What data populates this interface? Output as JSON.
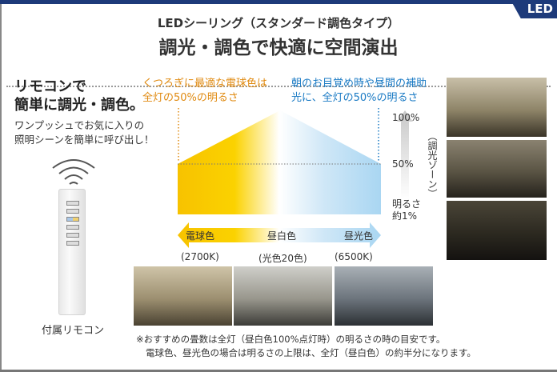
{
  "badge": "LED",
  "header": {
    "title": "LEDシーリング（スタンダード調色タイプ）",
    "subtitle": "調光・調色で快適に空間演出"
  },
  "left": {
    "lead_line1": "リモコンで",
    "lead_line2": "簡単に調光・調色。",
    "desc_line1": "ワンプッシュでお気に入りの",
    "desc_line2": "照明シーンを簡単に呼び出し！",
    "remote_label": "付属リモコン"
  },
  "callouts": {
    "warm_line1": "くつろぎに最適な電球色は",
    "warm_line2": "全灯の50%の明るさ",
    "cool_line1": "朝のお目覚め時や昼間の補助",
    "cool_line2": "光に、全灯の50%の明るさ"
  },
  "diagram": {
    "brightness_max": "100%",
    "brightness_mid": "50%",
    "brightness_min_line1": "明るさ",
    "brightness_min_line2": "約1%",
    "dimming_zone": "（調光ゾーン）",
    "arrow_labels": [
      "電球色",
      "昼白色",
      "昼光色"
    ],
    "kelvin_labels": [
      "(2700K)",
      "(光色20色)",
      "(6500K)"
    ],
    "colors": {
      "warm": "#f7c600",
      "cool": "#a9d6f2",
      "orange_text": "#e08a10",
      "blue_text": "#1a7ac4",
      "brand": "#1d3a7a"
    }
  },
  "note": {
    "line1": "※おすすめの畳数は全灯（昼白色100%点灯時）の明るさの時の目安です。",
    "line2": "電球色、昼光色の場合は明るさの上限は、全灯（昼白色）の約半分になります。"
  }
}
